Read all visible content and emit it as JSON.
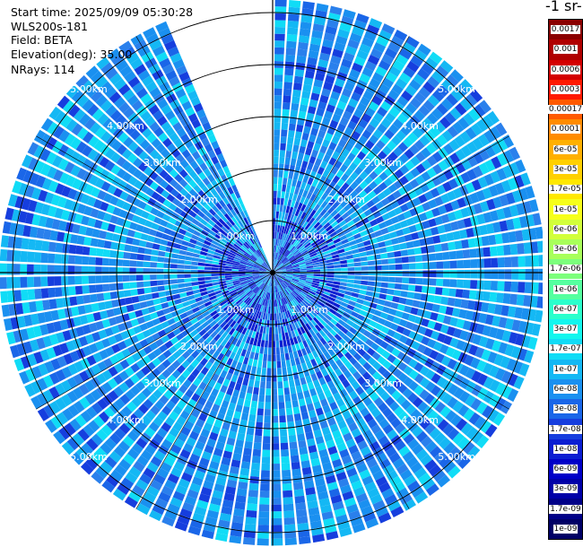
{
  "header": {
    "start_time": "Start time: 2025/09/09 05:30:28",
    "instrument": "WLS200s-181",
    "field": "Field: BETA",
    "elevation": "Elevation(deg): 35.00",
    "nrays": "NRays: 114"
  },
  "chart_data": {
    "type": "heatmap",
    "projection": "polar",
    "field": "BETA",
    "elevation_deg": 35.0,
    "nrays": 114,
    "max_range_km": 5.25,
    "range_ring_labels": [
      "1.00km",
      "2.00km",
      "3.00km",
      "4.00km",
      "5.00km"
    ],
    "range_rings_km": [
      1,
      2,
      3,
      4,
      5
    ],
    "missing_sector_deg": [
      0,
      337
    ],
    "dominant_value_range": [
      1e-08,
      1e-07
    ],
    "colorbar": {
      "title": "-1 sr-",
      "ticks": [
        "0.0017",
        "0.001",
        "0.0006",
        "0.0003",
        "0.00017",
        "0.0001",
        "6e-05",
        "3e-05",
        "1.7e-05",
        "1e-05",
        "6e-06",
        "3e-06",
        "1.7e-06",
        "1e-06",
        "6e-07",
        "3e-07",
        "1.7e-07",
        "1e-07",
        "6e-08",
        "3e-08",
        "1.7e-08",
        "1e-08",
        "6e-09",
        "3e-09",
        "1.7e-09",
        "1e-09"
      ],
      "colors": [
        "#8b0000",
        "#b00000",
        "#d40000",
        "#ff1a00",
        "#ff5a00",
        "#ff8c00",
        "#ffb000",
        "#ffd000",
        "#ffe800",
        "#f6ff1a",
        "#d2ff3a",
        "#a8ff5a",
        "#7cff7c",
        "#55ff9f",
        "#2affcc",
        "#12f6ee",
        "#10dcf6",
        "#14b8f4",
        "#1a90f0",
        "#1a66e8",
        "#163ede",
        "#0b1ed2",
        "#0000c8",
        "#0000a8",
        "#000088",
        "#000066"
      ]
    }
  }
}
